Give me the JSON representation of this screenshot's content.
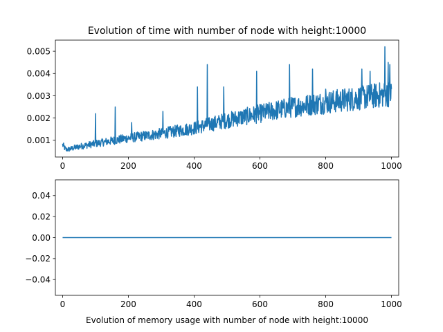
{
  "chart_data": [
    {
      "type": "line",
      "title": "Evolution of time with number of node with height:10000",
      "xlabel": "",
      "ylabel": "",
      "xlim": [
        -22,
        1022
      ],
      "ylim": [
        0.00025,
        0.0055
      ],
      "xticks": [
        0,
        200,
        400,
        600,
        800,
        1000
      ],
      "xtick_labels": [
        "0",
        "200",
        "400",
        "600",
        "800",
        "1000"
      ],
      "yticks": [
        0.001,
        0.002,
        0.003,
        0.004,
        0.005
      ],
      "ytick_labels": [
        "0.001",
        "0.002",
        "0.003",
        "0.004",
        "0.005"
      ],
      "grid": false,
      "series": [
        {
          "color": "#1f77b4",
          "trend": {
            "x": [
              0,
              10,
              20,
              50,
              100,
              150,
              200,
              300,
              400,
              500,
              600,
              700,
              800,
              900,
              1000
            ],
            "y": [
              0.0008,
              0.00058,
              0.0006,
              0.00072,
              0.00085,
              0.00098,
              0.0011,
              0.0013,
              0.00155,
              0.0019,
              0.0022,
              0.0025,
              0.0027,
              0.0029,
              0.0031
            ]
          },
          "noise_fraction": 0.12,
          "spikes": {
            "x": [
              100,
              160,
              210,
              305,
              410,
              440,
              490,
              590,
              690,
              760,
              800,
              910,
              935,
              980,
              990,
              995
            ],
            "y": [
              0.0022,
              0.0025,
              0.0018,
              0.0023,
              0.0034,
              0.0044,
              0.0034,
              0.0041,
              0.0044,
              0.0042,
              0.0033,
              0.0042,
              0.0041,
              0.0052,
              0.0045,
              0.0044
            ]
          }
        }
      ]
    },
    {
      "type": "line",
      "title": "",
      "xlabel": "Evolution of memory usage with number of node with height:10000",
      "ylabel": "",
      "xlim": [
        -22,
        1022
      ],
      "ylim": [
        -0.055,
        0.055
      ],
      "xticks": [
        0,
        200,
        400,
        600,
        800,
        1000
      ],
      "xtick_labels": [
        "0",
        "200",
        "400",
        "600",
        "800",
        "1000"
      ],
      "yticks": [
        0.04,
        0.02,
        0.0,
        -0.02,
        -0.04
      ],
      "ytick_labels": [
        "0.04",
        "0.02",
        "0.00",
        "−0.02",
        "−0.04"
      ],
      "grid": false,
      "series": [
        {
          "color": "#1f77b4",
          "x": [
            0,
            1000
          ],
          "y": [
            0.0,
            0.0
          ]
        }
      ]
    }
  ]
}
